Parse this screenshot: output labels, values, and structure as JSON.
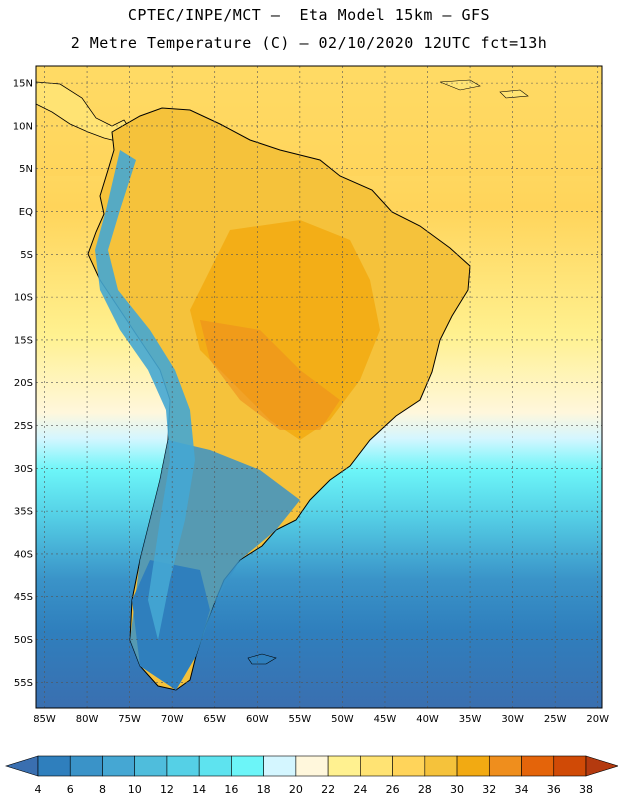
{
  "header": {
    "title_line1": "CPTEC/INPE/MCT –  Eta Model 15km – GFS",
    "title_line2": "2 Metre Temperature (C) – 02/10/2020 12UTC fct=13h"
  },
  "map": {
    "lon_range": [
      -86,
      -19.5
    ],
    "lat_range": [
      -58,
      17
    ],
    "lat_ticks": [
      {
        "v": 15,
        "label": "15N"
      },
      {
        "v": 10,
        "label": "10N"
      },
      {
        "v": 5,
        "label": "5N"
      },
      {
        "v": 0,
        "label": "EQ"
      },
      {
        "v": -5,
        "label": "5S"
      },
      {
        "v": -10,
        "label": "10S"
      },
      {
        "v": -15,
        "label": "15S"
      },
      {
        "v": -20,
        "label": "20S"
      },
      {
        "v": -25,
        "label": "25S"
      },
      {
        "v": -30,
        "label": "30S"
      },
      {
        "v": -35,
        "label": "35S"
      },
      {
        "v": -40,
        "label": "40S"
      },
      {
        "v": -45,
        "label": "45S"
      },
      {
        "v": -50,
        "label": "50S"
      },
      {
        "v": -55,
        "label": "55S"
      }
    ],
    "lon_ticks": [
      {
        "v": -85,
        "label": "85W"
      },
      {
        "v": -80,
        "label": "80W"
      },
      {
        "v": -75,
        "label": "75W"
      },
      {
        "v": -70,
        "label": "70W"
      },
      {
        "v": -65,
        "label": "65W"
      },
      {
        "v": -60,
        "label": "60W"
      },
      {
        "v": -55,
        "label": "55W"
      },
      {
        "v": -50,
        "label": "50W"
      },
      {
        "v": -45,
        "label": "45W"
      },
      {
        "v": -40,
        "label": "40W"
      },
      {
        "v": -35,
        "label": "35W"
      },
      {
        "v": -30,
        "label": "30W"
      },
      {
        "v": -25,
        "label": "25W"
      },
      {
        "v": -20,
        "label": "20W"
      }
    ]
  },
  "colorbar": {
    "labels": [
      "4",
      "6",
      "8",
      "10",
      "12",
      "14",
      "16",
      "18",
      "20",
      "22",
      "24",
      "26",
      "28",
      "30",
      "32",
      "34",
      "36",
      "38"
    ],
    "colors": [
      "#3a6fb0",
      "#2f7fbd",
      "#3a93c8",
      "#45a7d3",
      "#4fbddc",
      "#55d0e6",
      "#5ee3ef",
      "#6cf5f8",
      "#d4f6ff",
      "#fff7dc",
      "#fff190",
      "#ffe373",
      "#ffd45a",
      "#f5c23b",
      "#f2aa12",
      "#ef8e1d",
      "#e4640a",
      "#d04a06",
      "#b43a0f"
    ]
  }
}
